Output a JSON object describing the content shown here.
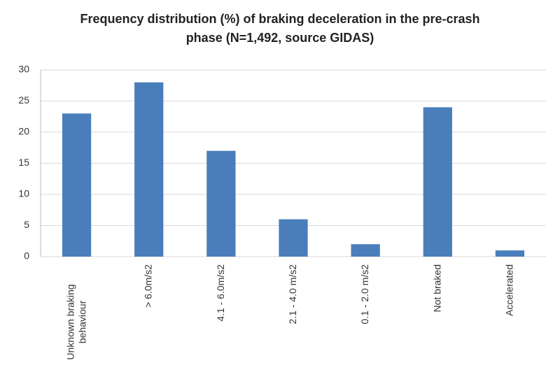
{
  "chart_data": {
    "type": "bar",
    "title": "Frequency distribution (%) of braking deceleration in the pre-crash phase (N=1,492, source GIDAS)",
    "categories": [
      "Unknown braking behaviour",
      "> 6.0m/s2",
      "4.1 - 6.0m/s2",
      "2.1  - 4.0 m/s2",
      "0.1 - 2.0 m/s2",
      "Not braked",
      "Accelerated"
    ],
    "values": [
      23,
      28,
      17,
      6,
      2,
      24,
      1
    ],
    "color": "#4a7ebb",
    "ylim": [
      0,
      30
    ],
    "yticks": [
      0,
      5,
      10,
      15,
      20,
      25,
      30
    ],
    "grid": true
  }
}
